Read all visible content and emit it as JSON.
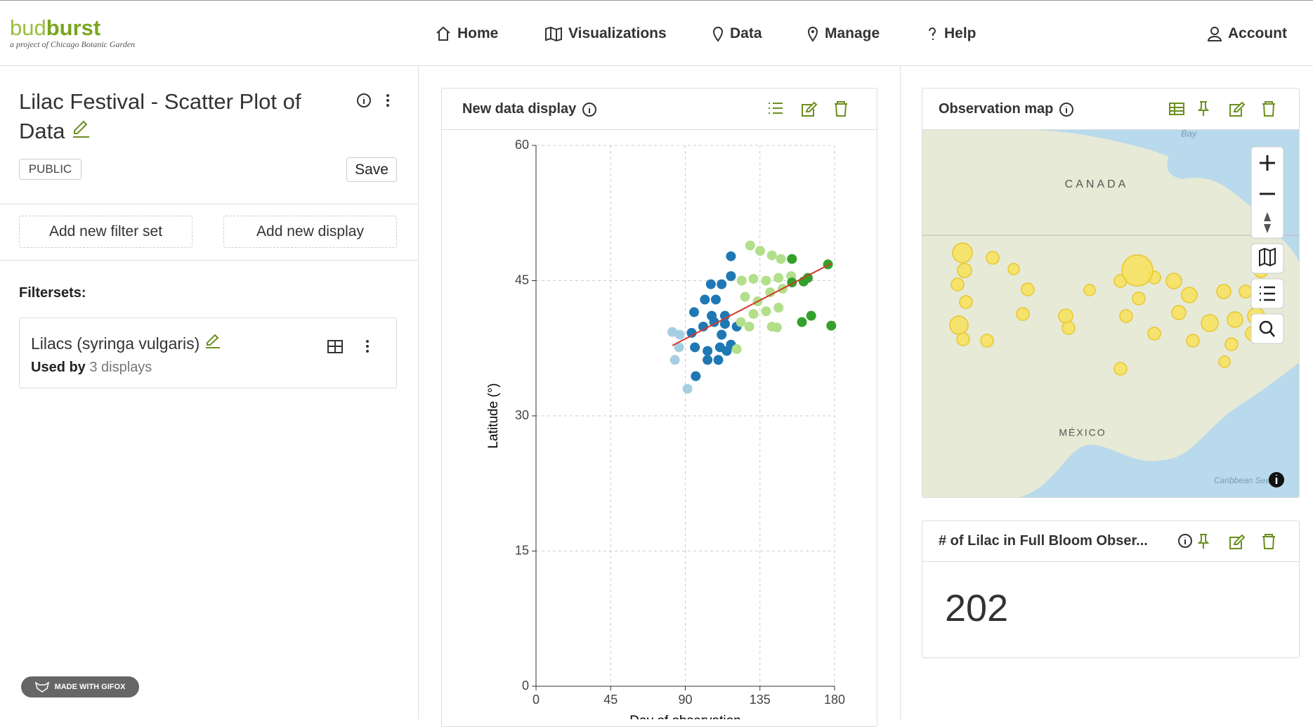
{
  "header": {
    "logo_main": "bud",
    "logo_accent": "burst",
    "logo_tagline": "a project of Chicago Botanic Garden",
    "nav": [
      "Home",
      "Visualizations",
      "Data",
      "Manage",
      "Help"
    ],
    "account": "Account"
  },
  "sidebar": {
    "title": "Lilac Festival - Scatter Plot of Data",
    "visibility": "PUBLIC",
    "save": "Save",
    "buttons": [
      "Add new filter set",
      "Add new display"
    ],
    "filtersets_label": "Filtersets:",
    "filterset": {
      "name": "Lilacs (syringa vulgaris)",
      "used_by_label": "Used by",
      "used_by_count": "3 displays"
    }
  },
  "badge": "MADE WITH GIFOX",
  "display": {
    "title": "New data display",
    "chart_data": {
      "type": "scatter",
      "x_label": "Day of observation",
      "y_label": "Latitude (°)",
      "xlim": [
        0,
        180
      ],
      "xticks": [
        0,
        45,
        90,
        135,
        180
      ],
      "ylim": [
        0,
        60
      ],
      "yticks": [
        0,
        15,
        30,
        45,
        60
      ],
      "grid": true,
      "series": [
        {
          "color": "#a6cee3",
          "x": [
            82.2,
            86.7,
            83.7,
            91.3,
            86.2
          ],
          "y": [
            39.3,
            39.0,
            36.2,
            33.0,
            37.6
          ]
        },
        {
          "color": "#1f78b4",
          "x": [
            117.5,
            105.4,
            117.5,
            111.9,
            101.8,
            108.4,
            95.3,
            105.9,
            113.9,
            93.8,
            100.8,
            107.4,
            113.9,
            121.0,
            95.8,
            103.4,
            110.9,
            117.5,
            103.4,
            109.9,
            115.0,
            96.3,
            111.9
          ],
          "y": [
            47.7,
            44.6,
            45.5,
            44.6,
            42.9,
            42.9,
            41.5,
            41.1,
            41.1,
            39.2,
            39.9,
            40.4,
            40.2,
            39.9,
            37.6,
            37.2,
            37.6,
            37.9,
            36.2,
            36.2,
            37.2,
            34.4,
            39.0
          ]
        },
        {
          "color": "#b2df8a",
          "x": [
            129.1,
            135.1,
            142.2,
            147.7,
            124.0,
            131.1,
            138.7,
            146.2,
            153.8,
            126.0,
            133.6,
            141.2,
            148.7,
            123.5,
            131.1,
            138.7,
            146.2,
            128.6,
            121.0,
            142.2,
            145.2
          ],
          "y": [
            48.9,
            48.3,
            47.8,
            47.4,
            45.0,
            45.2,
            45.0,
            45.3,
            45.5,
            43.2,
            42.7,
            43.7,
            44.1,
            40.4,
            41.3,
            41.6,
            42.0,
            39.9,
            37.4,
            39.9,
            39.8
          ]
        },
        {
          "color": "#33a02c",
          "x": [
            154.3,
            176.0,
            163.9,
            154.3,
            161.3,
            165.9,
            160.3,
            178.0
          ],
          "y": [
            47.4,
            46.8,
            45.3,
            44.8,
            44.9,
            41.1,
            40.4,
            40.0
          ]
        }
      ],
      "trend": {
        "color": "#d03a2a",
        "x": [
          82.2,
          178.0
        ],
        "y": [
          37.8,
          46.9
        ]
      }
    }
  },
  "map": {
    "title": "Observation map",
    "labels": [
      "CANADA",
      "MÉXICO",
      "Bay",
      "Caribbean Sea"
    ]
  },
  "stat": {
    "title": "# of Lilac in Full Bloom Obser...",
    "value": 202
  }
}
